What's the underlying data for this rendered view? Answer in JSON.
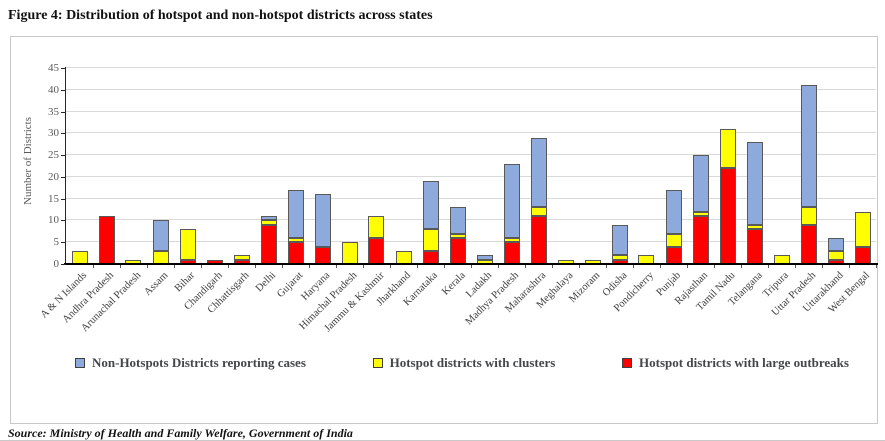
{
  "figure": {
    "title": "Figure 4: Distribution of hotspot and non-hotspot districts across states",
    "source": "Source: Ministry of Health and Family Welfare, Government of India"
  },
  "chart_data": {
    "type": "bar",
    "stacked": true,
    "title": "Figure 4: Distribution of hotspot and non-hotspot districts across states",
    "xlabel": "",
    "ylabel": "Number of Districts",
    "ylim": [
      0,
      45
    ],
    "ytick_step": 5,
    "grid": true,
    "legend_position": "bottom",
    "categories": [
      "A & N Islands",
      "Andhra Pradesh",
      "Arunachal Pradesh",
      "Assam",
      "Bihar",
      "Chandigarh",
      "Chhattisgarh",
      "Delhi",
      "Gujarat",
      "Haryana",
      "Himachal Pradesh",
      "Jammu & Kashmir",
      "Jharkhand",
      "Karnataka",
      "Kerala",
      "Ladakh",
      "Madhya Pradesh",
      "Maharashtra",
      "Meghalaya",
      "Mizoram",
      "Odisha",
      "Pondicherry",
      "Punjab",
      "Rajasthan",
      "Tamil Nadu",
      "Telangana",
      "Tripura",
      "Uttar Pradesh",
      "Uttarakhand",
      "West Bengal"
    ],
    "series": [
      {
        "name": "Hotspot districts with large outbreaks",
        "color": "#ff0000",
        "stack_position": "bottom",
        "values": [
          0,
          11,
          0,
          0,
          1,
          1,
          1,
          9,
          5,
          4,
          0,
          6,
          0,
          3,
          6,
          0,
          5,
          11,
          0,
          0,
          1,
          0,
          4,
          11,
          22,
          8,
          0,
          9,
          1,
          4
        ]
      },
      {
        "name": "Hotspot districts with clusters",
        "color": "#ffff00",
        "stack_position": "middle",
        "values": [
          3,
          0,
          1,
          3,
          7,
          0,
          1,
          1,
          1,
          0,
          5,
          5,
          3,
          5,
          1,
          1,
          1,
          2,
          1,
          1,
          1,
          2,
          3,
          1,
          9,
          1,
          2,
          4,
          2,
          8
        ]
      },
      {
        "name": "Non-Hotspots Districts reporting cases",
        "color": "#8ea9db",
        "stack_position": "top",
        "values": [
          0,
          0,
          0,
          7,
          0,
          0,
          0,
          1,
          11,
          12,
          0,
          0,
          0,
          11,
          6,
          1,
          17,
          16,
          0,
          0,
          7,
          0,
          10,
          13,
          0,
          19,
          0,
          28,
          3,
          0
        ]
      }
    ],
    "totals": [
      3,
      11,
      1,
      10,
      8,
      1,
      2,
      11,
      17,
      16,
      5,
      11,
      3,
      19,
      13,
      2,
      23,
      29,
      1,
      1,
      9,
      2,
      17,
      25,
      31,
      28,
      2,
      41,
      6,
      12
    ],
    "legend_order": [
      "Non-Hotspots Districts reporting cases",
      "Hotspot districts with clusters",
      "Hotspot districts with large outbreaks"
    ]
  }
}
